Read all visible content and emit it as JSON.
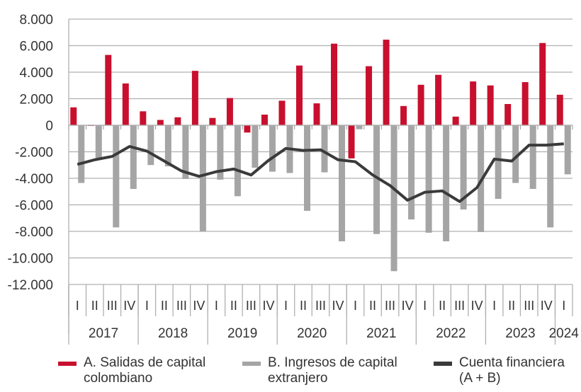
{
  "chart_data": {
    "type": "bar",
    "title": "",
    "xlabel": "",
    "ylabel": "",
    "ylim": [
      -12000,
      8000
    ],
    "yticks": [
      8000,
      6000,
      4000,
      2000,
      0,
      -2000,
      -4000,
      -6000,
      -8000,
      -10000,
      -12000
    ],
    "ytick_labels": [
      "8.000",
      "6.000",
      "4.000",
      "2.000",
      "0",
      "-2.000",
      "-4.000",
      "-6.000",
      "-8.000",
      "-10.000",
      "-12.000"
    ],
    "grid": true,
    "legend_position": "bottom",
    "years": [
      {
        "label": "2017",
        "quarters": [
          "I",
          "II",
          "III",
          "IV"
        ]
      },
      {
        "label": "2018",
        "quarters": [
          "I",
          "II",
          "III",
          "IV"
        ]
      },
      {
        "label": "2019",
        "quarters": [
          "I",
          "II",
          "III",
          "IV"
        ]
      },
      {
        "label": "2020",
        "quarters": [
          "I",
          "II",
          "III",
          "IV"
        ]
      },
      {
        "label": "2021",
        "quarters": [
          "I",
          "II",
          "III",
          "IV"
        ]
      },
      {
        "label": "2022",
        "quarters": [
          "I",
          "II",
          "III",
          "IV"
        ]
      },
      {
        "label": "2023",
        "quarters": [
          "I",
          "II",
          "III",
          "IV"
        ]
      },
      {
        "label": "2024",
        "quarters": [
          "I"
        ]
      }
    ],
    "series": [
      {
        "name": "A. Salidas de capital colombiano",
        "type": "bar",
        "color": "#c8102e",
        "values": [
          1350,
          -50,
          5300,
          3150,
          1050,
          400,
          600,
          4100,
          550,
          2050,
          -550,
          800,
          1850,
          4500,
          1650,
          6150,
          -2500,
          4450,
          6450,
          1450,
          3050,
          3800,
          650,
          3300,
          3000,
          1600,
          3250,
          6200,
          2300
        ]
      },
      {
        "name": "B. Ingresos de capital extranjero",
        "type": "bar",
        "color": "#a5a5a5",
        "values": [
          -4350,
          -2450,
          -7700,
          -4800,
          -3000,
          -3100,
          -4050,
          -8000,
          -4100,
          -5350,
          -3200,
          -3500,
          -3600,
          -6450,
          -3550,
          -8750,
          -300,
          -8200,
          -11000,
          -7100,
          -8100,
          -8750,
          -6350,
          -8050,
          -5550,
          -4350,
          -4800,
          -7700,
          -3700
        ]
      },
      {
        "name": "Cuenta financiera (A + B)",
        "type": "line",
        "color": "#3a3a3a",
        "values": [
          -2950,
          -2600,
          -2350,
          -1600,
          -1950,
          -2700,
          -3450,
          -3850,
          -3500,
          -3300,
          -3750,
          -2650,
          -1750,
          -1900,
          -1850,
          -2600,
          -2750,
          -3750,
          -4550,
          -5650,
          -5050,
          -4950,
          -5750,
          -4700,
          -2550,
          -2700,
          -1500,
          -1500,
          -1400
        ]
      }
    ]
  },
  "legend": [
    {
      "line1": "A. Salidas de capital",
      "line2": "colombiano"
    },
    {
      "line1": "B. Ingresos de capital",
      "line2": "extranjero"
    },
    {
      "line1": "Cuenta financiera",
      "line2": "(A + B)"
    }
  ]
}
